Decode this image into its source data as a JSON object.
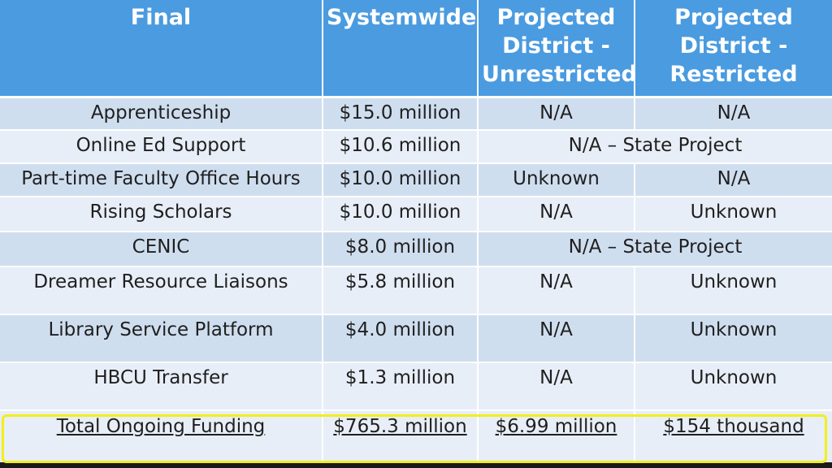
{
  "header": [
    "Final",
    "Systemwide",
    "Projected District - Unrestricted",
    "Projected District - Restricted"
  ],
  "rows": [
    {
      "name": "Apprenticeship",
      "systemwide": "$15.0 million",
      "unrestricted": "N/A",
      "restricted": "N/A"
    },
    {
      "name": "Online Ed Support",
      "systemwide": "$10.6 million",
      "merged": "N/A – State Project"
    },
    {
      "name": "Part-time Faculty Office Hours",
      "systemwide": "$10.0 million",
      "unrestricted": "Unknown",
      "restricted": "N/A"
    },
    {
      "name": "Rising Scholars",
      "systemwide": "$10.0 million",
      "unrestricted": "N/A",
      "restricted": "Unknown"
    },
    {
      "name": "CENIC",
      "systemwide": "$8.0 million",
      "merged": "N/A – State Project"
    },
    {
      "name": "Dreamer Resource Liaisons",
      "systemwide": "$5.8 million",
      "unrestricted": "N/A",
      "restricted": "Unknown"
    },
    {
      "name": "Library Service Platform",
      "systemwide": "$4.0 million",
      "unrestricted": "N/A",
      "restricted": "Unknown"
    },
    {
      "name": "HBCU Transfer",
      "systemwide": "$1.3 million",
      "unrestricted": "N/A",
      "restricted": "Unknown"
    }
  ],
  "total": {
    "name": "Total Ongoing Funding",
    "systemwide": "$765.3 million",
    "unrestricted": "$6.99 million",
    "restricted": "$154 thousand"
  },
  "colors": {
    "header_bg": "#4a9be0",
    "row_dark": "#cfdeef",
    "row_light": "#e8eef7",
    "highlight": "#f2ef1a"
  }
}
